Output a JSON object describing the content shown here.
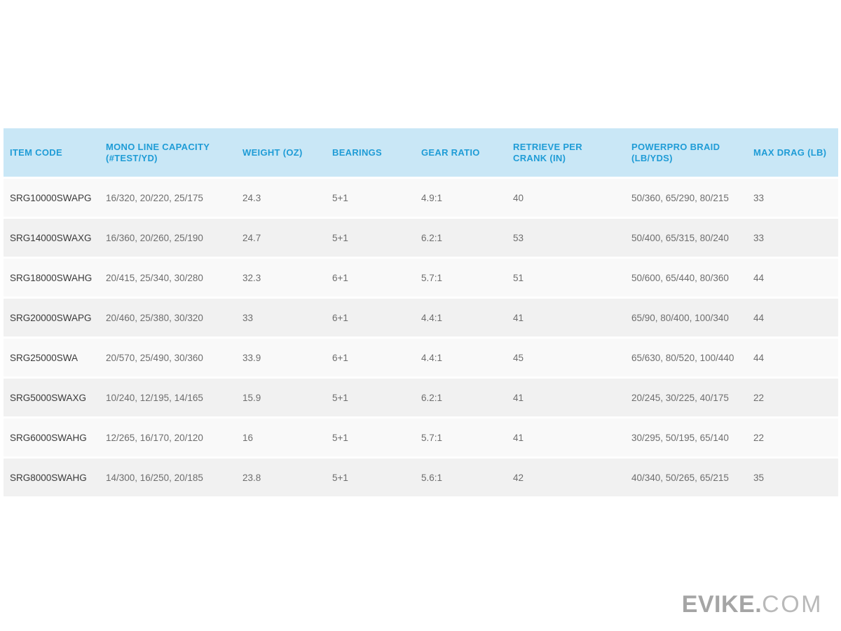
{
  "colors": {
    "header_background": "#c9e7f6",
    "header_text": "#1f9cd6",
    "row_odd_background": "#f9f9f9",
    "row_even_background": "#f1f1f1",
    "item_code_text": "#3b3b3b",
    "cell_text": "#6e6e6e",
    "logo_gray": "#a5a5a5"
  },
  "table": {
    "columns": [
      {
        "key": "item_code",
        "label": "ITEM CODE"
      },
      {
        "key": "mono_line_capacity",
        "label": "MONO LINE CAPACITY (#TEST/YD)"
      },
      {
        "key": "weight_oz",
        "label": "WEIGHT (OZ)"
      },
      {
        "key": "bearings",
        "label": "BEARINGS"
      },
      {
        "key": "gear_ratio",
        "label": "GEAR RATIO"
      },
      {
        "key": "retrieve_per_crank",
        "label": "RETRIEVE PER CRANK (IN)"
      },
      {
        "key": "powerpro_braid",
        "label": "POWERPRO BRAID (LB/YDS)"
      },
      {
        "key": "max_drag",
        "label": "MAX DRAG (LB)"
      }
    ],
    "rows": [
      {
        "item_code": "SRG10000SWAPG",
        "mono_line_capacity": "16/320, 20/220, 25/175",
        "weight_oz": "24.3",
        "bearings": "5+1",
        "gear_ratio": "4.9:1",
        "retrieve_per_crank": "40",
        "powerpro_braid": "50/360, 65/290, 80/215",
        "max_drag": "33"
      },
      {
        "item_code": "SRG14000SWAXG",
        "mono_line_capacity": "16/360, 20/260, 25/190",
        "weight_oz": "24.7",
        "bearings": "5+1",
        "gear_ratio": "6.2:1",
        "retrieve_per_crank": "53",
        "powerpro_braid": "50/400, 65/315, 80/240",
        "max_drag": "33"
      },
      {
        "item_code": "SRG18000SWAHG",
        "mono_line_capacity": "20/415, 25/340, 30/280",
        "weight_oz": "32.3",
        "bearings": "6+1",
        "gear_ratio": "5.7:1",
        "retrieve_per_crank": "51",
        "powerpro_braid": "50/600, 65/440, 80/360",
        "max_drag": "44"
      },
      {
        "item_code": "SRG20000SWAPG",
        "mono_line_capacity": "20/460, 25/380, 30/320",
        "weight_oz": "33",
        "bearings": "6+1",
        "gear_ratio": "4.4:1",
        "retrieve_per_crank": "41",
        "powerpro_braid": "65/90, 80/400, 100/340",
        "max_drag": "44"
      },
      {
        "item_code": "SRG25000SWA",
        "mono_line_capacity": "20/570, 25/490, 30/360",
        "weight_oz": "33.9",
        "bearings": "6+1",
        "gear_ratio": "4.4:1",
        "retrieve_per_crank": "45",
        "powerpro_braid": "65/630, 80/520, 100/440",
        "max_drag": "44"
      },
      {
        "item_code": "SRG5000SWAXG",
        "mono_line_capacity": "10/240, 12/195, 14/165",
        "weight_oz": "15.9",
        "bearings": "5+1",
        "gear_ratio": "6.2:1",
        "retrieve_per_crank": "41",
        "powerpro_braid": "20/245, 30/225, 40/175",
        "max_drag": "22"
      },
      {
        "item_code": "SRG6000SWAHG",
        "mono_line_capacity": "12/265, 16/170, 20/120",
        "weight_oz": "16",
        "bearings": "5+1",
        "gear_ratio": "5.7:1",
        "retrieve_per_crank": "41",
        "powerpro_braid": "30/295, 50/195, 65/140",
        "max_drag": "22"
      },
      {
        "item_code": "SRG8000SWAHG",
        "mono_line_capacity": "14/300, 16/250, 20/185",
        "weight_oz": "23.8",
        "bearings": "5+1",
        "gear_ratio": "5.6:1",
        "retrieve_per_crank": "42",
        "powerpro_braid": "40/340, 50/265, 65/215",
        "max_drag": "35"
      }
    ]
  },
  "footer": {
    "logo": {
      "primary": "EVIKE.",
      "secondary": "COM"
    }
  }
}
